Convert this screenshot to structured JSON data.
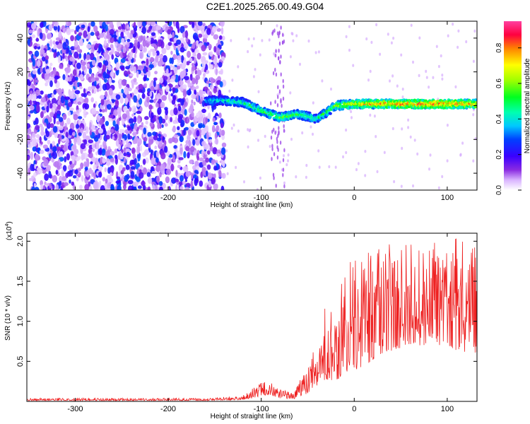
{
  "title": "C2E1.2025.265.00.49.G04",
  "colors": {
    "line": "#ee2020",
    "axes": "#000000",
    "background": "#ffffff"
  },
  "chart_data": [
    {
      "type": "heatmap",
      "name": "spectrogram",
      "title": "C2E1.2025.265.00.49.G04",
      "xlabel": "Height of straight line (km)",
      "ylabel": "Frequency (Hz)",
      "xlim": [
        -352,
        132
      ],
      "ylim": [
        -50,
        50
      ],
      "x_ticks": [
        -300,
        -200,
        -100,
        0,
        100
      ],
      "y_ticks": [
        -40,
        -20,
        0,
        20,
        40
      ],
      "x_tick_labels": [
        "-300",
        "-200",
        "-100",
        "0",
        "100"
      ],
      "y_tick_labels": [
        "-40",
        "-20",
        "0",
        "20",
        "40"
      ],
      "colorbar": {
        "label": "Normalized spectral amplitude",
        "range": [
          0,
          0.95
        ],
        "ticks": [
          0.0,
          0.2,
          0.4,
          0.6,
          0.8
        ],
        "tick_labels": [
          "0.0",
          "0.2",
          "0.4",
          "0.6",
          "0.8"
        ]
      },
      "features": {
        "noise_region_x": [
          -352,
          -140
        ],
        "noise_amplitude_range": [
          0.05,
          0.3
        ],
        "signal_track": [
          {
            "x": -160,
            "freq": 3,
            "amp": 0.4
          },
          {
            "x": -140,
            "freq": 3,
            "amp": 0.45
          },
          {
            "x": -120,
            "freq": 2,
            "amp": 0.5
          },
          {
            "x": -100,
            "freq": -3,
            "amp": 0.55
          },
          {
            "x": -80,
            "freq": -7,
            "amp": 0.6
          },
          {
            "x": -60,
            "freq": -5,
            "amp": 0.55
          },
          {
            "x": -40,
            "freq": -8,
            "amp": 0.5
          },
          {
            "x": -20,
            "freq": 0,
            "amp": 0.6
          },
          {
            "x": 0,
            "freq": 1,
            "amp": 0.75
          },
          {
            "x": 50,
            "freq": 1,
            "amp": 0.85
          },
          {
            "x": 100,
            "freq": 1,
            "amp": 0.85
          },
          {
            "x": 132,
            "freq": 1,
            "amp": 0.8
          }
        ]
      }
    },
    {
      "type": "line",
      "name": "snr",
      "xlabel": "Height of straight line (km)",
      "ylabel": "SNR (10 * v/v)",
      "multiplier_label": "(x10",
      "multiplier_exponent": "4",
      "xlim": [
        -352,
        132
      ],
      "ylim": [
        0,
        2.1
      ],
      "x_ticks": [
        -300,
        -200,
        -100,
        0,
        100
      ],
      "y_ticks": [
        0.5,
        1.0,
        1.5,
        2.0
      ],
      "x_tick_labels": [
        "-300",
        "-200",
        "-100",
        "0",
        "100"
      ],
      "y_tick_labels": [
        "0.5",
        "1.0",
        "1.5",
        "2.0"
      ],
      "envelope": [
        {
          "x": -352,
          "base": 0.01,
          "spread": 0.03
        },
        {
          "x": -160,
          "base": 0.01,
          "spread": 0.03
        },
        {
          "x": -120,
          "base": 0.02,
          "spread": 0.05
        },
        {
          "x": -110,
          "base": 0.04,
          "spread": 0.12
        },
        {
          "x": -95,
          "base": 0.08,
          "spread": 0.2
        },
        {
          "x": -80,
          "base": 0.04,
          "spread": 0.12
        },
        {
          "x": -65,
          "base": 0.03,
          "spread": 0.08
        },
        {
          "x": -50,
          "base": 0.1,
          "spread": 0.35
        },
        {
          "x": -35,
          "base": 0.25,
          "spread": 0.65
        },
        {
          "x": -25,
          "base": 0.25,
          "spread": 1.25
        },
        {
          "x": 0,
          "base": 0.35,
          "spread": 1.4
        },
        {
          "x": 30,
          "base": 0.6,
          "spread": 1.4
        },
        {
          "x": 60,
          "base": 0.7,
          "spread": 1.3
        },
        {
          "x": 100,
          "base": 0.7,
          "spread": 1.35
        },
        {
          "x": 132,
          "base": 0.5,
          "spread": 1.5
        }
      ]
    }
  ]
}
